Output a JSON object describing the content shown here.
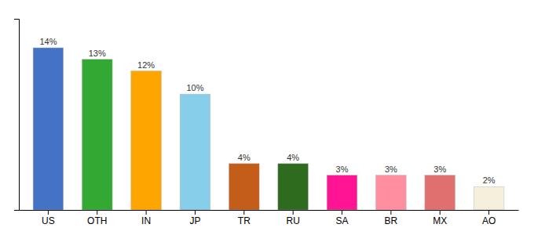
{
  "chart_data": {
    "type": "bar",
    "categories": [
      "US",
      "OTH",
      "IN",
      "JP",
      "TR",
      "RU",
      "SA",
      "BR",
      "MX",
      "AO"
    ],
    "values": [
      14,
      13,
      12,
      10,
      4,
      4,
      3,
      3,
      3,
      2
    ],
    "value_labels": [
      "14%",
      "13%",
      "12%",
      "10%",
      "4%",
      "4%",
      "3%",
      "3%",
      "3%",
      "2%"
    ],
    "colors": [
      "#4472c4",
      "#33a832",
      "#ffa500",
      "#87ceeb",
      "#c45c1a",
      "#2e6b1e",
      "#ff1493",
      "#ff8fa0",
      "#e07070",
      "#f5f0dc"
    ],
    "ylim": [
      0,
      16.5
    ],
    "data_labels": true,
    "tick_labels": "x",
    "grid": false
  }
}
